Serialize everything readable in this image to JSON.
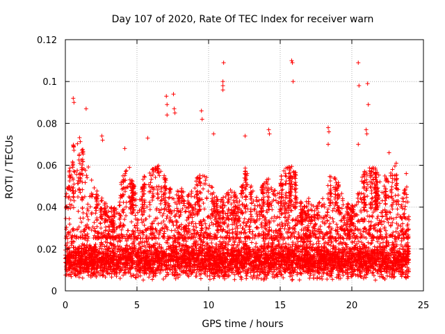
{
  "chart_data": {
    "type": "scatter",
    "title": "Day 107 of 2020, Rate Of TEC Index for receiver warn",
    "xlabel": "GPS time / hours",
    "ylabel": "ROTI / TECUs",
    "xlim": [
      0,
      25
    ],
    "ylim": [
      0,
      0.12
    ],
    "xticks": [
      0,
      5,
      10,
      15,
      20,
      25
    ],
    "yticks": [
      0,
      0.02,
      0.04,
      0.06,
      0.08,
      0.1,
      0.12
    ],
    "xtick_labels": [
      "0",
      "5",
      "10",
      "15",
      "20",
      "25"
    ],
    "ytick_labels": [
      "0",
      "0.02",
      "0.04",
      "0.06",
      "0.08",
      "0.1",
      "0.12"
    ],
    "grid": true,
    "marker": "+",
    "color": "#ff0000",
    "series": [
      {
        "name": "ROTI",
        "notable_points": [
          {
            "x": 0.55,
            "y": 0.092
          },
          {
            "x": 0.6,
            "y": 0.09
          },
          {
            "x": 1.45,
            "y": 0.087
          },
          {
            "x": 2.55,
            "y": 0.074
          },
          {
            "x": 2.6,
            "y": 0.072
          },
          {
            "x": 4.15,
            "y": 0.068
          },
          {
            "x": 5.75,
            "y": 0.073
          },
          {
            "x": 7.05,
            "y": 0.093
          },
          {
            "x": 7.1,
            "y": 0.089
          },
          {
            "x": 7.1,
            "y": 0.084
          },
          {
            "x": 7.55,
            "y": 0.094
          },
          {
            "x": 7.6,
            "y": 0.087
          },
          {
            "x": 7.65,
            "y": 0.085
          },
          {
            "x": 9.5,
            "y": 0.086
          },
          {
            "x": 9.55,
            "y": 0.082
          },
          {
            "x": 10.35,
            "y": 0.075
          },
          {
            "x": 11.05,
            "y": 0.109
          },
          {
            "x": 11.0,
            "y": 0.1
          },
          {
            "x": 11.0,
            "y": 0.098
          },
          {
            "x": 11.0,
            "y": 0.096
          },
          {
            "x": 12.55,
            "y": 0.074
          },
          {
            "x": 14.2,
            "y": 0.077
          },
          {
            "x": 14.25,
            "y": 0.075
          },
          {
            "x": 15.8,
            "y": 0.11
          },
          {
            "x": 15.85,
            "y": 0.109
          },
          {
            "x": 15.9,
            "y": 0.1
          },
          {
            "x": 18.35,
            "y": 0.078
          },
          {
            "x": 18.4,
            "y": 0.076
          },
          {
            "x": 18.35,
            "y": 0.07
          },
          {
            "x": 20.45,
            "y": 0.109
          },
          {
            "x": 20.5,
            "y": 0.098
          },
          {
            "x": 20.45,
            "y": 0.07
          },
          {
            "x": 21.1,
            "y": 0.099
          },
          {
            "x": 21.15,
            "y": 0.089
          },
          {
            "x": 21.0,
            "y": 0.077
          },
          {
            "x": 21.05,
            "y": 0.075
          },
          {
            "x": 22.6,
            "y": 0.066
          },
          {
            "x": 23.1,
            "y": 0.061
          },
          {
            "x": 23.8,
            "y": 0.056
          }
        ],
        "bulk": {
          "x_range": [
            0,
            24
          ],
          "typical_range": [
            0.005,
            0.025
          ],
          "upper_envelope": [
            [
              0,
              0.045
            ],
            [
              0.5,
              0.07
            ],
            [
              1,
              0.075
            ],
            [
              1.5,
              0.062
            ],
            [
              2,
              0.05
            ],
            [
              2.5,
              0.045
            ],
            [
              3,
              0.04
            ],
            [
              3.5,
              0.04
            ],
            [
              4,
              0.055
            ],
            [
              4.5,
              0.06
            ],
            [
              5,
              0.045
            ],
            [
              5.5,
              0.055
            ],
            [
              6,
              0.06
            ],
            [
              6.5,
              0.06
            ],
            [
              7,
              0.058
            ],
            [
              7.5,
              0.045
            ],
            [
              8,
              0.05
            ],
            [
              8.5,
              0.045
            ],
            [
              9,
              0.05
            ],
            [
              9.5,
              0.06
            ],
            [
              10,
              0.055
            ],
            [
              10.5,
              0.045
            ],
            [
              11,
              0.045
            ],
            [
              11.5,
              0.05
            ],
            [
              12,
              0.045
            ],
            [
              12.5,
              0.06
            ],
            [
              13,
              0.05
            ],
            [
              13.5,
              0.045
            ],
            [
              14,
              0.055
            ],
            [
              14.5,
              0.05
            ],
            [
              15,
              0.055
            ],
            [
              15.5,
              0.06
            ],
            [
              16,
              0.06
            ],
            [
              16.5,
              0.04
            ],
            [
              17,
              0.045
            ],
            [
              17.5,
              0.04
            ],
            [
              18,
              0.045
            ],
            [
              18.5,
              0.055
            ],
            [
              19,
              0.055
            ],
            [
              19.5,
              0.045
            ],
            [
              20,
              0.04
            ],
            [
              20.5,
              0.05
            ],
            [
              21,
              0.06
            ],
            [
              21.5,
              0.06
            ],
            [
              22,
              0.055
            ],
            [
              22.5,
              0.055
            ],
            [
              23,
              0.06
            ],
            [
              23.5,
              0.05
            ],
            [
              24,
              0.05
            ]
          ]
        }
      }
    ]
  }
}
